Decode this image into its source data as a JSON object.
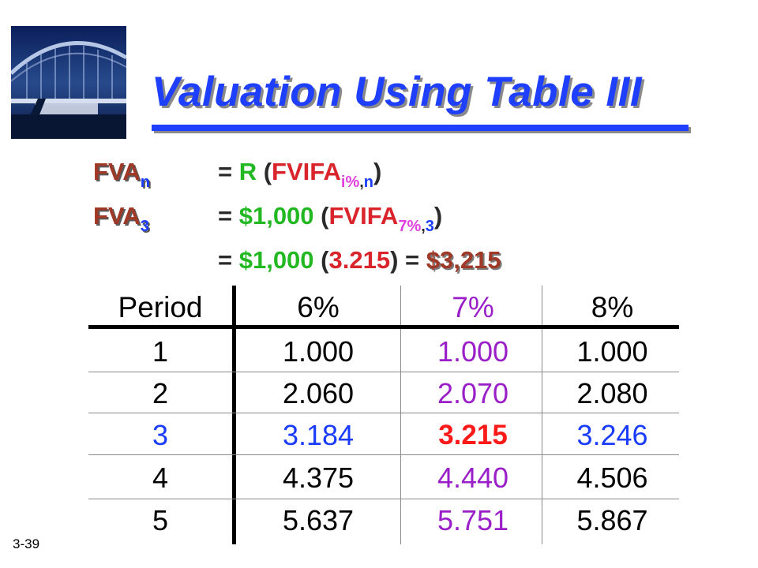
{
  "slide": {
    "title": "Valuation Using Table III",
    "number": "3-39"
  },
  "equations": {
    "line1": {
      "lhs": "FVA",
      "lhs_sub": "n",
      "eq": "= ",
      "r": "R",
      "open": " (",
      "fn": "FVIFA",
      "sub_i": "i%",
      "sub_comma": ",",
      "sub_n": "n",
      "close": ")"
    },
    "line2": {
      "lhs": "FVA",
      "lhs_sub": "3",
      "eq": "= ",
      "amount": "$1,000",
      "open": " (",
      "fn": "FVIFA",
      "sub_i": "7%",
      "sub_comma": ",",
      "sub_n": "3",
      "close": ")"
    },
    "line3": {
      "eq": "= ",
      "amount": "$1,000",
      "open": " (",
      "factor": "3.215",
      "close": ")",
      "eq2": " = ",
      "result": "$3,215"
    }
  },
  "table": {
    "headers": [
      "Period",
      "6%",
      "7%",
      "8%"
    ],
    "rows": [
      [
        "1",
        "1.000",
        "1.000",
        "1.000"
      ],
      [
        "2",
        "2.060",
        "2.070",
        "2.080"
      ],
      [
        "3",
        "3.184",
        "3.215",
        "3.246"
      ],
      [
        "4",
        "4.375",
        "4.440",
        "4.506"
      ],
      [
        "5",
        "5.637",
        "5.751",
        "5.867"
      ]
    ],
    "highlight_row": 3,
    "highlight_column": "7%"
  },
  "colors": {
    "title": "#1f3fff",
    "column_7pct": "#9a1fc8",
    "highlight_row": "#1a3cff",
    "highlight_cell": "#ff1a1a",
    "green": "#22b822",
    "result": "#a03828"
  }
}
